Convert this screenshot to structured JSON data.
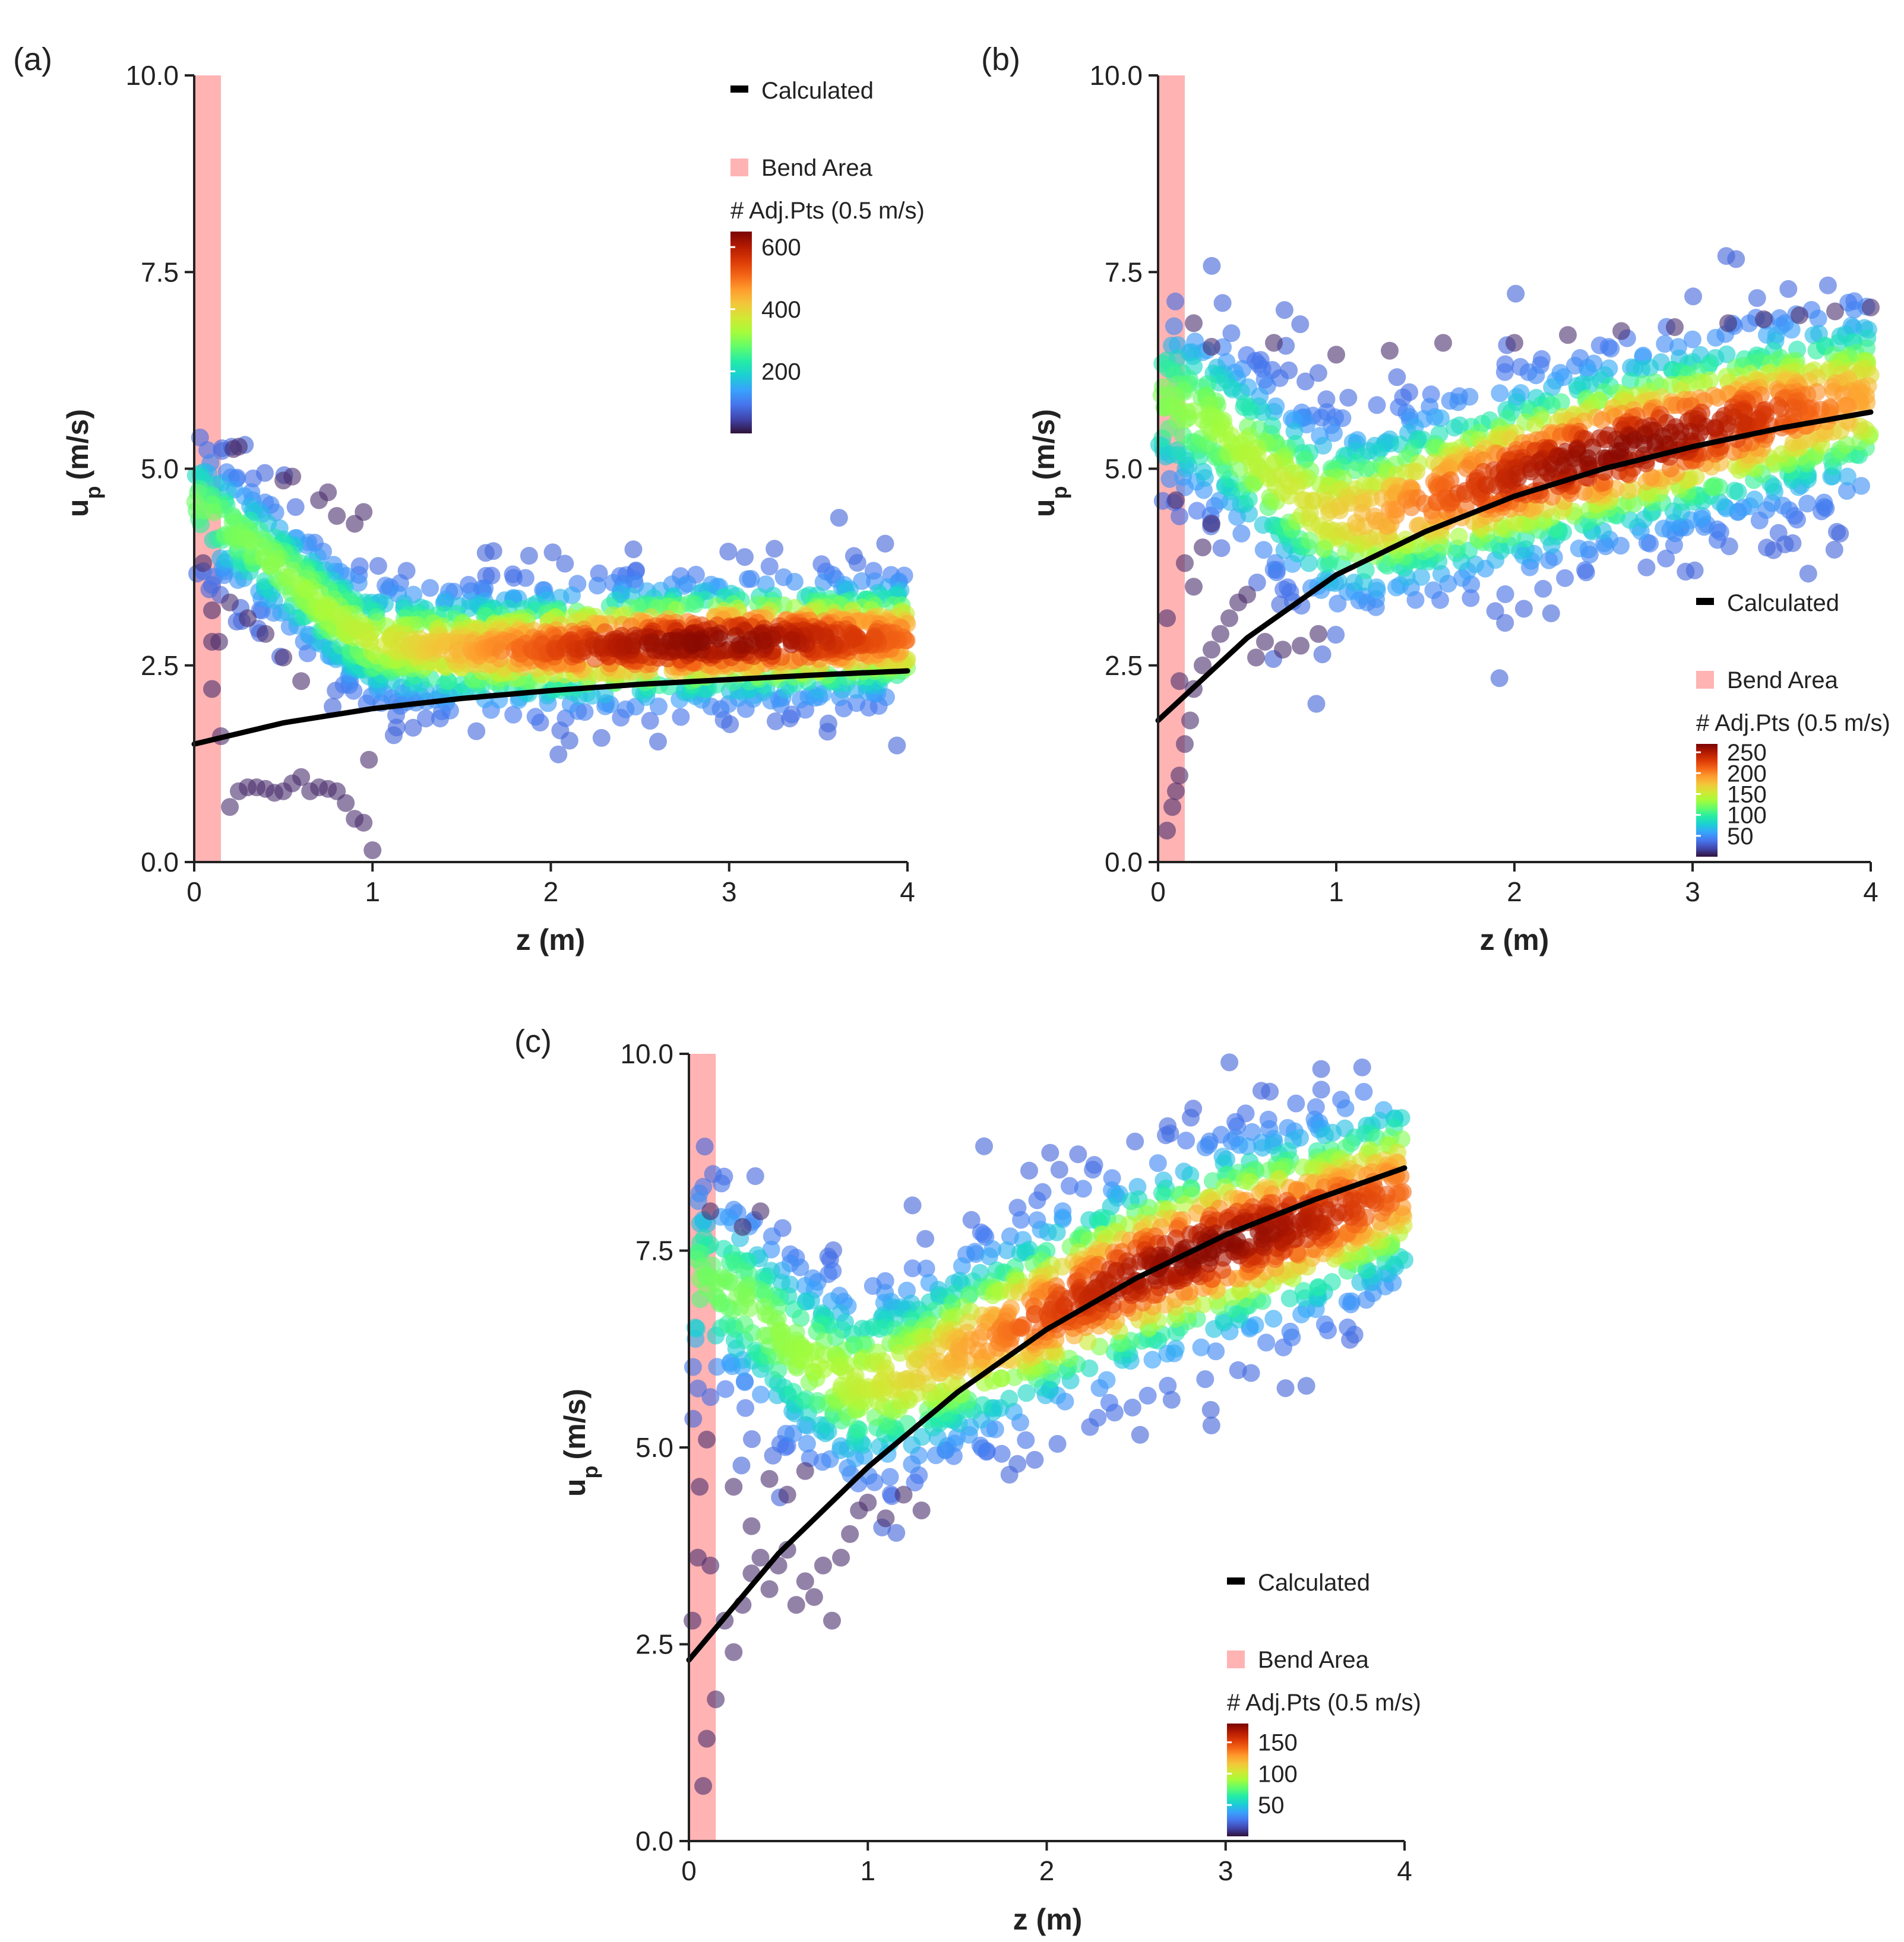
{
  "figure": {
    "legend_calculated": "Calculated",
    "legend_bend": "Bend Area",
    "colorbar_title": "# Adj.Pts (0.5 m/s)",
    "colors": {
      "calculated_line": "#000000",
      "bend_area": "#ffb3b3",
      "sparse_point": "#4b2e6e",
      "colormap": [
        "#30123b",
        "#4145ab",
        "#4675ed",
        "#39a2fc",
        "#1bcfd4",
        "#24eca6",
        "#61fc6c",
        "#a4fc3b",
        "#d1e834",
        "#f3c63a",
        "#fe9b2d",
        "#f36315",
        "#d93806",
        "#b11901",
        "#7a0403"
      ]
    }
  },
  "chart_data": [
    {
      "panel": "(a)",
      "type": "scatter",
      "title": "",
      "xlabel": "z (m)",
      "ylabel": "u",
      "ylabel_sub": "p",
      "ylabel_unit": "(m/s)",
      "xlim": [
        0,
        4
      ],
      "ylim": [
        0,
        10
      ],
      "xticks": [
        0,
        1,
        2,
        3,
        4
      ],
      "yticks": [
        0.0,
        2.5,
        5.0,
        7.5,
        10.0
      ],
      "ytick_labels": [
        "0.0",
        "2.5",
        "5.0",
        "7.5",
        "10.0"
      ],
      "bend_area": [
        0,
        0.15
      ],
      "legend_position": "top-right",
      "colorbar": {
        "min": 0,
        "max": 650,
        "ticks": [
          600,
          400,
          200
        ]
      },
      "calculated": {
        "x": [
          0,
          0.5,
          1,
          1.5,
          2,
          2.5,
          3,
          3.5,
          4
        ],
        "y": [
          1.5,
          1.77,
          1.95,
          2.08,
          2.18,
          2.26,
          2.32,
          2.38,
          2.43
        ]
      },
      "density_ridge": {
        "x": [
          0,
          0.4,
          0.8,
          1.0,
          1.5,
          2,
          2.5,
          3,
          3.5,
          4
        ],
        "y": [
          4.6,
          3.9,
          3.1,
          2.8,
          2.7,
          2.72,
          2.76,
          2.8,
          2.82,
          2.85
        ],
        "spread": 0.45,
        "peak_z": 2.9,
        "peak_count": 600
      },
      "outliers": {
        "x": [
          0.05,
          0.1,
          0.14,
          0.2,
          0.25,
          0.3,
          0.35,
          0.4,
          0.45,
          0.5,
          0.55,
          0.6,
          0.65,
          0.7,
          0.75,
          0.8,
          0.85,
          0.9,
          0.95,
          1.0,
          0.2,
          0.3,
          0.4,
          0.5,
          0.6,
          0.7,
          0.8,
          0.9,
          0.95,
          0.22,
          0.25,
          0.5,
          0.55,
          0.75,
          0.98,
          0.1,
          0.1,
          0.15
        ],
        "y": [
          3.8,
          2.2,
          2.8,
          0.7,
          0.9,
          0.95,
          0.95,
          0.93,
          0.88,
          0.9,
          1.0,
          1.08,
          0.9,
          0.95,
          0.93,
          0.9,
          0.75,
          0.55,
          0.5,
          0.15,
          3.3,
          3.1,
          2.9,
          2.6,
          2.3,
          4.6,
          4.4,
          4.3,
          4.45,
          5.25,
          5.28,
          4.85,
          4.9,
          4.7,
          1.3,
          2.8,
          3.2,
          1.6
        ]
      }
    },
    {
      "panel": "(b)",
      "type": "scatter",
      "title": "",
      "xlabel": "z (m)",
      "ylabel": "u",
      "ylabel_sub": "p",
      "ylabel_unit": "(m/s)",
      "xlim": [
        0,
        4
      ],
      "ylim": [
        0,
        10
      ],
      "xticks": [
        0,
        1,
        2,
        3,
        4
      ],
      "yticks": [
        0.0,
        2.5,
        5.0,
        7.5,
        10.0
      ],
      "ytick_labels": [
        "0.0",
        "2.5",
        "5.0",
        "7.5",
        "10.0"
      ],
      "bend_area": [
        0,
        0.15
      ],
      "legend_position": "bottom-right",
      "colorbar": {
        "min": 0,
        "max": 270,
        "ticks": [
          250,
          200,
          150,
          100,
          50
        ]
      },
      "calculated": {
        "x": [
          0,
          0.5,
          1,
          1.5,
          2,
          2.5,
          3,
          3.5,
          4
        ],
        "y": [
          1.8,
          2.85,
          3.65,
          4.2,
          4.65,
          5.0,
          5.28,
          5.52,
          5.72
        ]
      },
      "density_ridge": {
        "x": [
          0,
          0.3,
          0.6,
          0.9,
          1.2,
          1.5,
          2,
          2.5,
          3,
          3.5,
          4
        ],
        "y": [
          5.9,
          5.6,
          5.0,
          4.45,
          4.4,
          4.6,
          4.9,
          5.2,
          5.45,
          5.7,
          5.9
        ],
        "spread": 0.7,
        "peak_z": 2.6,
        "peak_count": 250
      },
      "outliers": {
        "x": [
          0.05,
          0.1,
          0.12,
          0.15,
          0.18,
          0.2,
          0.25,
          0.3,
          0.35,
          0.4,
          0.45,
          0.5,
          0.55,
          0.6,
          0.7,
          0.8,
          0.9,
          0.15,
          0.2,
          0.25,
          0.3,
          0.08,
          0.05,
          0.12,
          0.1,
          0.2,
          0.3,
          0.65,
          1.0,
          1.3,
          1.6,
          2.0,
          2.3,
          2.6,
          2.9,
          3.2,
          3.4,
          3.6,
          3.8,
          4.0
        ],
        "y": [
          0.4,
          0.9,
          1.1,
          1.5,
          1.8,
          2.2,
          2.5,
          2.7,
          2.9,
          3.1,
          3.3,
          3.4,
          2.6,
          2.8,
          2.7,
          2.75,
          2.9,
          3.8,
          3.5,
          4.0,
          4.3,
          0.7,
          3.1,
          2.3,
          4.6,
          6.85,
          6.55,
          6.6,
          6.45,
          6.5,
          6.6,
          6.6,
          6.7,
          6.75,
          6.8,
          6.85,
          6.9,
          6.95,
          7.0,
          7.05
        ]
      }
    },
    {
      "panel": "(c)",
      "type": "scatter",
      "title": "",
      "xlabel": "z (m)",
      "ylabel": "u",
      "ylabel_sub": "p",
      "ylabel_unit": "(m/s)",
      "xlim": [
        0,
        4
      ],
      "ylim": [
        0,
        10
      ],
      "xticks": [
        0,
        1,
        2,
        3,
        4
      ],
      "yticks": [
        0.0,
        2.5,
        5.0,
        7.5,
        10.0
      ],
      "ytick_labels": [
        "0.0",
        "2.5",
        "5.0",
        "7.5",
        "10.0"
      ],
      "bend_area": [
        0,
        0.15
      ],
      "legend_position": "bottom-right",
      "colorbar": {
        "min": 0,
        "max": 180,
        "ticks": [
          150,
          100,
          50
        ]
      },
      "calculated": {
        "x": [
          0,
          0.5,
          1,
          1.5,
          2,
          2.5,
          3,
          3.5,
          4
        ],
        "y": [
          2.3,
          3.65,
          4.75,
          5.7,
          6.5,
          7.15,
          7.7,
          8.15,
          8.55
        ]
      },
      "density_ridge": {
        "x": [
          0,
          0.3,
          0.6,
          0.9,
          1.2,
          1.5,
          2,
          2.5,
          3,
          3.5,
          4
        ],
        "y": [
          7.2,
          6.9,
          6.2,
          5.8,
          5.9,
          6.2,
          6.7,
          7.2,
          7.6,
          7.9,
          8.3
        ],
        "spread": 0.75,
        "peak_z": 2.9,
        "peak_count": 160
      },
      "outliers": {
        "x": [
          0.02,
          0.05,
          0.08,
          0.1,
          0.12,
          0.15,
          0.2,
          0.25,
          0.3,
          0.35,
          0.4,
          0.45,
          0.5,
          0.55,
          0.6,
          0.65,
          0.7,
          0.75,
          0.8,
          0.85,
          0.9,
          0.95,
          1.0,
          1.1,
          1.2,
          1.3,
          0.25,
          0.35,
          0.45,
          0.55,
          0.65,
          0.06,
          0.1,
          0.12,
          0.3,
          0.4
        ],
        "y": [
          2.8,
          3.6,
          0.7,
          1.3,
          3.5,
          1.8,
          2.8,
          2.4,
          3.0,
          3.4,
          3.6,
          3.2,
          3.5,
          3.7,
          3.0,
          3.3,
          3.1,
          3.5,
          2.8,
          3.6,
          3.9,
          4.2,
          4.3,
          4.1,
          4.4,
          4.2,
          4.5,
          4.0,
          4.6,
          4.4,
          4.7,
          4.5,
          5.1,
          8.0,
          7.8,
          8.0
        ]
      }
    }
  ]
}
